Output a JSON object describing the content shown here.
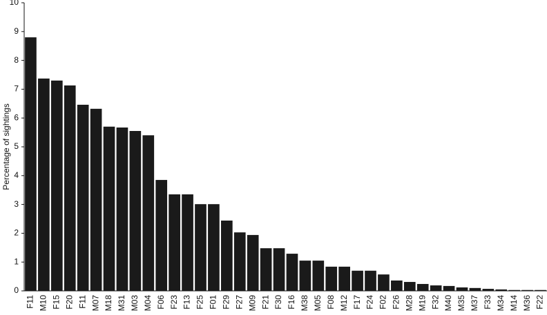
{
  "chart_data": {
    "type": "bar",
    "y_label": "Percentage of sightings",
    "categories": [
      "F11",
      "M10",
      "F15",
      "F20",
      "F11",
      "M07",
      "M18",
      "M31",
      "M03",
      "M04",
      "F06",
      "F23",
      "F13",
      "F25",
      "F01",
      "F29",
      "F27",
      "M09",
      "F21",
      "F30",
      "F16",
      "M38",
      "M05",
      "F08",
      "M12",
      "F17",
      "F24",
      "F02",
      "F26",
      "M28",
      "M19",
      "F32",
      "M40",
      "M35",
      "M37",
      "F33",
      "M34",
      "M14",
      "M36",
      "F22"
    ],
    "values": [
      8.8,
      7.37,
      7.3,
      7.13,
      6.46,
      6.32,
      5.7,
      5.67,
      5.55,
      5.4,
      3.85,
      3.35,
      3.35,
      3.01,
      3.01,
      2.44,
      2.03,
      1.94,
      1.48,
      1.48,
      1.29,
      1.05,
      1.05,
      0.84,
      0.84,
      0.7,
      0.7,
      0.57,
      0.36,
      0.31,
      0.24,
      0.19,
      0.17,
      0.12,
      0.1,
      0.07,
      0.05,
      0.03,
      0.03,
      0.03
    ],
    "color": "#1a1a1a",
    "ylim": [
      0,
      10
    ],
    "yticks": [
      0,
      1,
      2,
      3,
      4,
      5,
      6,
      7,
      8,
      9,
      10
    ],
    "grid": false
  }
}
